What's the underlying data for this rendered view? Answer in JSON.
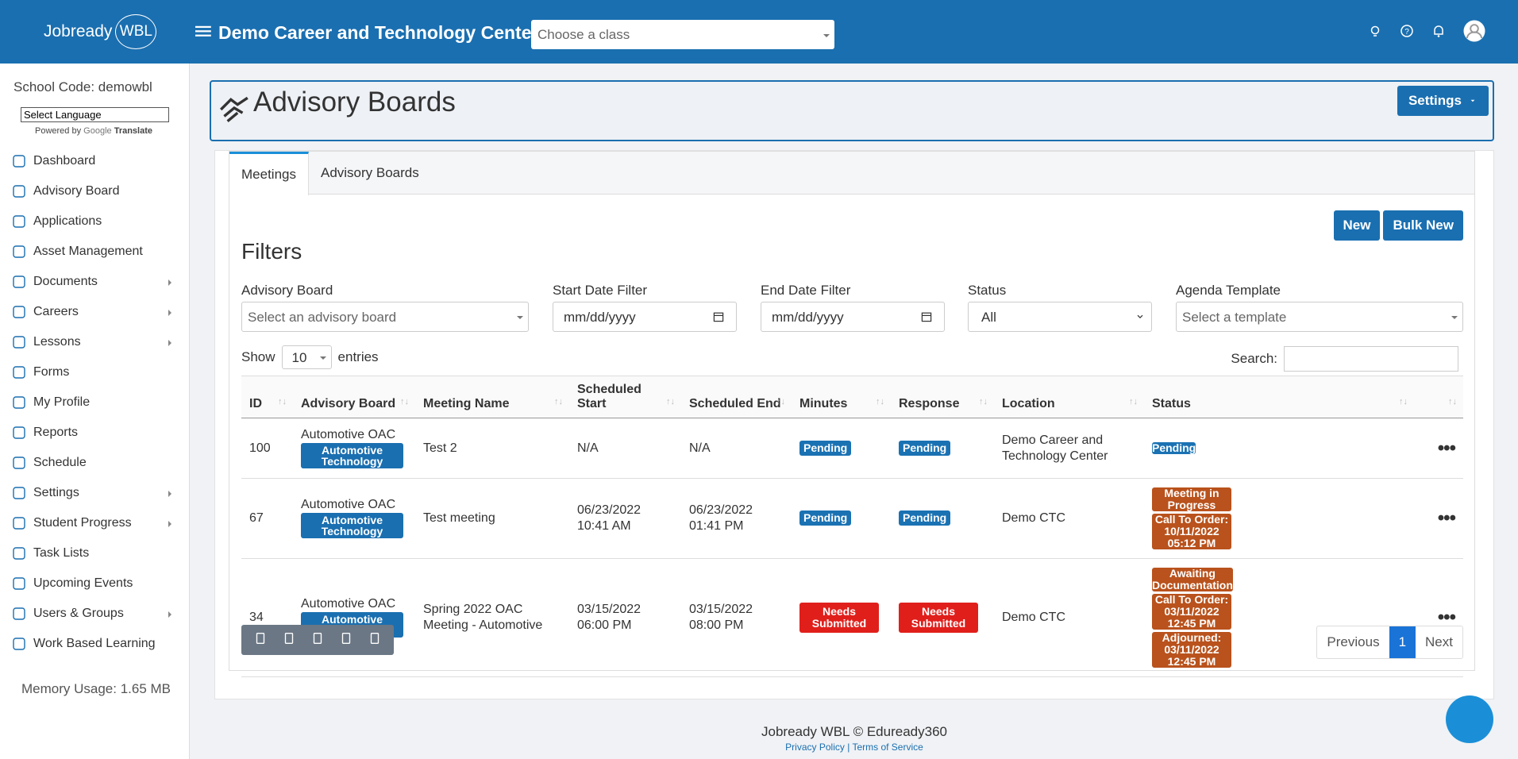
{
  "header": {
    "logo": "Jobready",
    "logo_badge": "WBL",
    "school": "Demo Career and Technology Center",
    "class_placeholder": "Choose a class"
  },
  "sidebar": {
    "school_code": "School Code: demowbl",
    "language": "Select Language",
    "powered_by": "Powered by",
    "google": "Google",
    "translate": "Translate",
    "menu": [
      {
        "label": "Dashboard",
        "submenu": false
      },
      {
        "label": "Advisory Board",
        "submenu": false
      },
      {
        "label": "Applications",
        "submenu": false
      },
      {
        "label": "Asset Management",
        "submenu": false
      },
      {
        "label": "Documents",
        "submenu": true
      },
      {
        "label": "Careers",
        "submenu": true
      },
      {
        "label": "Lessons",
        "submenu": true
      },
      {
        "label": "Forms",
        "submenu": false
      },
      {
        "label": "My Profile",
        "submenu": false
      },
      {
        "label": "Reports",
        "submenu": false
      },
      {
        "label": "Schedule",
        "submenu": false
      },
      {
        "label": "Settings",
        "submenu": true
      },
      {
        "label": "Student Progress",
        "submenu": true
      },
      {
        "label": "Task Lists",
        "submenu": false
      },
      {
        "label": "Upcoming Events",
        "submenu": false
      },
      {
        "label": "Users & Groups",
        "submenu": true
      },
      {
        "label": "Work Based Learning",
        "submenu": false
      }
    ],
    "memory": "Memory Usage: 1.65 MB"
  },
  "page": {
    "title": "Advisory Boards",
    "settings": "Settings",
    "tabs": [
      "Meetings",
      "Advisory Boards"
    ],
    "active_tab": 0,
    "buttons": [
      "New",
      "Bulk New"
    ],
    "filters_title": "Filters",
    "filters": [
      {
        "label": "Advisory Board",
        "placeholder": "Select an advisory board",
        "kind": "combo"
      },
      {
        "label": "Start Date Filter",
        "placeholder": "mm/dd/yyyy",
        "kind": "date"
      },
      {
        "label": "End Date Filter",
        "placeholder": "mm/dd/yyyy",
        "kind": "date"
      },
      {
        "label": "Status",
        "placeholder": "All",
        "kind": "select"
      },
      {
        "label": "Agenda Template",
        "placeholder": "Select a template",
        "kind": "combo"
      }
    ],
    "show": "Show",
    "page_length": "10",
    "entries": "entries",
    "search": "Search:",
    "table": {
      "columns": [
        "ID",
        "Advisory Board",
        "Meeting Name",
        "Scheduled Start",
        "Scheduled End",
        "Minutes",
        "Response",
        "Location",
        "Status"
      ],
      "rows": [
        {
          "id": 100,
          "board": "Automotive OAC",
          "tag": "Automotive Technology",
          "meeting": "Test 2",
          "start": "N/A",
          "end": "N/A",
          "minutes": {
            "text": "Pending",
            "color": "#1a72b3"
          },
          "response": {
            "text": "Pending",
            "color": "#1a72b3"
          },
          "location": "Demo Career and Technology Center",
          "status": [
            {
              "text": "Pending",
              "color": "#1a72b3"
            }
          ]
        },
        {
          "id": 67,
          "board": "Automotive OAC",
          "tag": "Automotive Technology",
          "meeting": "Test meeting",
          "start": "06/23/2022 10:41 AM",
          "end": "06/23/2022 01:41 PM",
          "minutes": {
            "text": "Pending",
            "color": "#1a72b3"
          },
          "response": {
            "text": "Pending",
            "color": "#1a72b3"
          },
          "location": "Demo CTC",
          "status": [
            {
              "text": "Meeting in Progress",
              "color": "#b9521c"
            },
            {
              "text": "Call To Order: 10/11/2022 05:12 PM",
              "color": "#b9521c"
            }
          ]
        },
        {
          "id": 34,
          "board": "Automotive OAC",
          "tag": "Automotive Technology",
          "meeting": "Spring 2022 OAC Meeting - Automotive",
          "start": "03/15/2022 06:00 PM",
          "end": "03/15/2022 08:00 PM",
          "minutes": {
            "text": "Needs Submitted",
            "color": "#e01f1b"
          },
          "response": {
            "text": "Needs Submitted",
            "color": "#e01f1b"
          },
          "location": "Demo CTC",
          "status": [
            {
              "text": "Awaiting Documentation",
              "color": "#b9521c"
            },
            {
              "text": "Call To Order: 03/11/2022 12:45 PM",
              "color": "#b9521c"
            },
            {
              "text": "Adjourned: 03/11/2022 12:45 PM",
              "color": "#b9521c"
            }
          ]
        }
      ]
    },
    "pagination": [
      "Previous",
      "1",
      "Next"
    ]
  },
  "footer": {
    "copyright": "Jobready WBL © Eduready360",
    "privacy": "Privacy Policy",
    "separator": "|",
    "terms": "Terms of Service"
  }
}
